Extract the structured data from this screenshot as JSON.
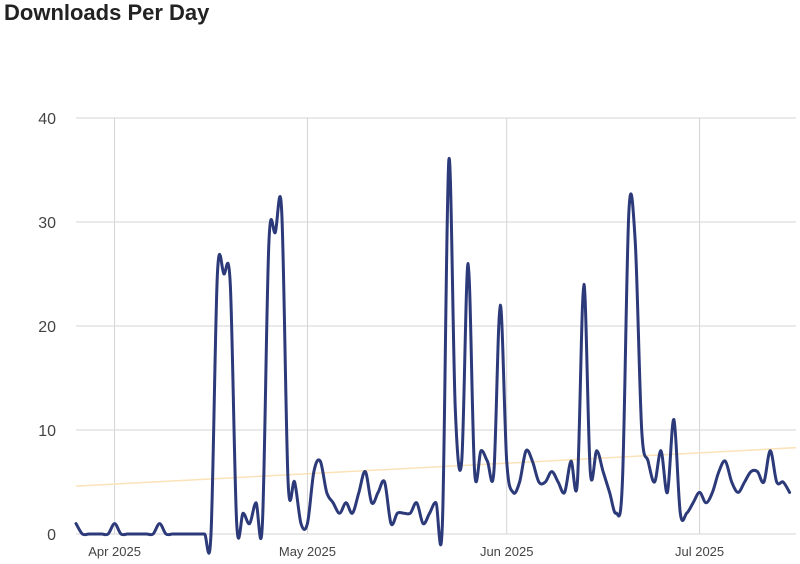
{
  "title": "Downloads Per Day",
  "colors": {
    "series": "#2c3a7a",
    "trend": "#fbe2b8",
    "grid": "#d4d4d4"
  },
  "chart_data": {
    "type": "line",
    "title": "Downloads Per Day",
    "xlabel": "",
    "ylabel": "",
    "x_start": "2025-03-26",
    "x_end": "2025-07-16",
    "ylim": [
      0,
      40
    ],
    "y_ticks": [
      0,
      10,
      20,
      30,
      40
    ],
    "x_ticks": [
      {
        "label": "Apr 2025",
        "date": "2025-04-01"
      },
      {
        "label": "May 2025",
        "date": "2025-05-01"
      },
      {
        "label": "Jun 2025",
        "date": "2025-06-01"
      },
      {
        "label": "Jul 2025",
        "date": "2025-07-01"
      }
    ],
    "grid": true,
    "legend": "none",
    "series": [
      {
        "values": [
          [
            "2025-03-26",
            1
          ],
          [
            "2025-03-27",
            0
          ],
          [
            "2025-03-28",
            0
          ],
          [
            "2025-03-29",
            0
          ],
          [
            "2025-03-30",
            0
          ],
          [
            "2025-03-31",
            0
          ],
          [
            "2025-04-01",
            1
          ],
          [
            "2025-04-02",
            0
          ],
          [
            "2025-04-03",
            0
          ],
          [
            "2025-04-04",
            0
          ],
          [
            "2025-04-05",
            0
          ],
          [
            "2025-04-06",
            0
          ],
          [
            "2025-04-07",
            0
          ],
          [
            "2025-04-08",
            1
          ],
          [
            "2025-04-09",
            0
          ],
          [
            "2025-04-10",
            0
          ],
          [
            "2025-04-11",
            0
          ],
          [
            "2025-04-12",
            0
          ],
          [
            "2025-04-13",
            0
          ],
          [
            "2025-04-14",
            0
          ],
          [
            "2025-04-15",
            0
          ],
          [
            "2025-04-16",
            0
          ],
          [
            "2025-04-17",
            25
          ],
          [
            "2025-04-18",
            25
          ],
          [
            "2025-04-19",
            24
          ],
          [
            "2025-04-20",
            1
          ],
          [
            "2025-04-21",
            2
          ],
          [
            "2025-04-22",
            1
          ],
          [
            "2025-04-23",
            3
          ],
          [
            "2025-04-24",
            1
          ],
          [
            "2025-04-25",
            28
          ],
          [
            "2025-04-26",
            29
          ],
          [
            "2025-04-27",
            31
          ],
          [
            "2025-04-28",
            5
          ],
          [
            "2025-04-29",
            5
          ],
          [
            "2025-04-30",
            1
          ],
          [
            "2025-05-01",
            1
          ],
          [
            "2025-05-02",
            6
          ],
          [
            "2025-05-03",
            7
          ],
          [
            "2025-05-04",
            4
          ],
          [
            "2025-05-05",
            3
          ],
          [
            "2025-05-06",
            2
          ],
          [
            "2025-05-07",
            3
          ],
          [
            "2025-05-08",
            2
          ],
          [
            "2025-05-09",
            4
          ],
          [
            "2025-05-10",
            6
          ],
          [
            "2025-05-11",
            3
          ],
          [
            "2025-05-12",
            4
          ],
          [
            "2025-05-13",
            5
          ],
          [
            "2025-05-14",
            1
          ],
          [
            "2025-05-15",
            2
          ],
          [
            "2025-05-16",
            2
          ],
          [
            "2025-05-17",
            2
          ],
          [
            "2025-05-18",
            3
          ],
          [
            "2025-05-19",
            1
          ],
          [
            "2025-05-20",
            2
          ],
          [
            "2025-05-21",
            3
          ],
          [
            "2025-05-22",
            1
          ],
          [
            "2025-05-23",
            36
          ],
          [
            "2025-05-24",
            12
          ],
          [
            "2025-05-25",
            7
          ],
          [
            "2025-05-26",
            26
          ],
          [
            "2025-05-27",
            6
          ],
          [
            "2025-05-28",
            8
          ],
          [
            "2025-05-29",
            7
          ],
          [
            "2025-05-30",
            6
          ],
          [
            "2025-05-31",
            22
          ],
          [
            "2025-06-01",
            7
          ],
          [
            "2025-06-02",
            4
          ],
          [
            "2025-06-03",
            5
          ],
          [
            "2025-06-04",
            8
          ],
          [
            "2025-06-05",
            7
          ],
          [
            "2025-06-06",
            5
          ],
          [
            "2025-06-07",
            5
          ],
          [
            "2025-06-08",
            6
          ],
          [
            "2025-06-09",
            5
          ],
          [
            "2025-06-10",
            4
          ],
          [
            "2025-06-11",
            7
          ],
          [
            "2025-06-12",
            5
          ],
          [
            "2025-06-13",
            24
          ],
          [
            "2025-06-14",
            6
          ],
          [
            "2025-06-15",
            8
          ],
          [
            "2025-06-16",
            6
          ],
          [
            "2025-06-17",
            4
          ],
          [
            "2025-06-18",
            2
          ],
          [
            "2025-06-19",
            5
          ],
          [
            "2025-06-20",
            31
          ],
          [
            "2025-06-21",
            28
          ],
          [
            "2025-06-22",
            10
          ],
          [
            "2025-06-23",
            7
          ],
          [
            "2025-06-24",
            5
          ],
          [
            "2025-06-25",
            8
          ],
          [
            "2025-06-26",
            4
          ],
          [
            "2025-06-27",
            11
          ],
          [
            "2025-06-28",
            2
          ],
          [
            "2025-06-29",
            2
          ],
          [
            "2025-06-30",
            3
          ],
          [
            "2025-07-01",
            4
          ],
          [
            "2025-07-02",
            3
          ],
          [
            "2025-07-03",
            4
          ],
          [
            "2025-07-04",
            6
          ],
          [
            "2025-07-05",
            7
          ],
          [
            "2025-07-06",
            5
          ],
          [
            "2025-07-07",
            4
          ],
          [
            "2025-07-08",
            5
          ],
          [
            "2025-07-09",
            6
          ],
          [
            "2025-07-10",
            6
          ],
          [
            "2025-07-11",
            5
          ],
          [
            "2025-07-12",
            8
          ],
          [
            "2025-07-13",
            5
          ],
          [
            "2025-07-14",
            5
          ],
          [
            "2025-07-15",
            4
          ]
        ]
      }
    ],
    "trend": {
      "start": [
        "2025-03-26",
        4.6
      ],
      "end": [
        "2025-07-16",
        8.3
      ]
    }
  }
}
